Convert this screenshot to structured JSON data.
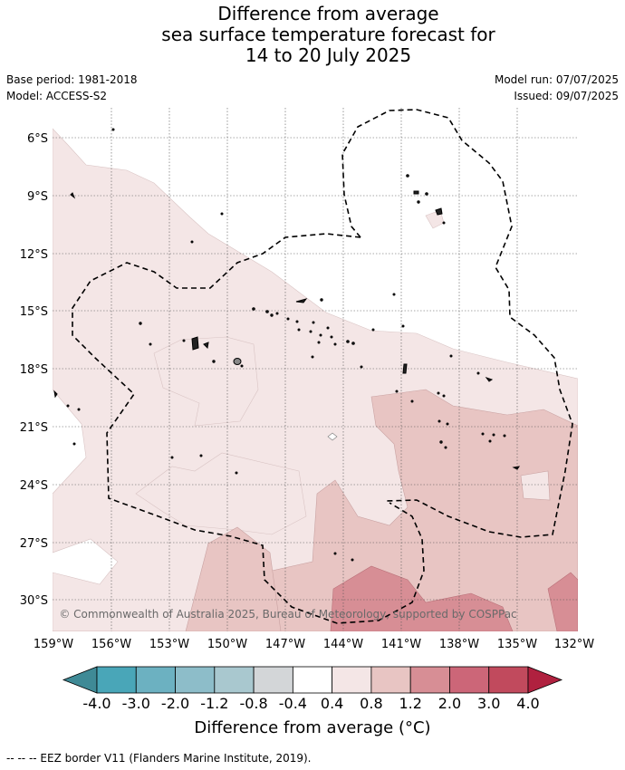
{
  "title": {
    "line1": "Difference from average",
    "line2": "sea surface temperature forecast for",
    "line3": "14 to 20 July 2025"
  },
  "meta_left": {
    "base_period": "Base period: 1981-2018",
    "model": "Model: ACCESS-S2"
  },
  "meta_right": {
    "model_run": "Model run: 07/07/2025",
    "issued": "Issued: 09/07/2025"
  },
  "map": {
    "lat_labels": [
      "6°S",
      "9°S",
      "12°S",
      "15°S",
      "18°S",
      "21°S",
      "24°S",
      "27°S",
      "30°S"
    ],
    "lon_labels": [
      "159°W",
      "156°W",
      "153°W",
      "150°W",
      "147°W",
      "144°W",
      "141°W",
      "138°W",
      "135°W",
      "132°W"
    ],
    "copyright": "© Commonwealth of Australia 2025, Bureau of Meteorology, supported by COSPPac",
    "eez_border": "dashed"
  },
  "colorbar": {
    "ticks": [
      "-4.0",
      "-3.0",
      "-2.0",
      "-1.2",
      "-0.8",
      "-0.4",
      "0.4",
      "0.8",
      "1.2",
      "2.0",
      "3.0",
      "4.0"
    ],
    "colors": [
      "#3f8a96",
      "#49a6b8",
      "#6cb1c1",
      "#8dbdc9",
      "#a9c8cf",
      "#d3d6d8",
      "#ffffff",
      "#f4e6e6",
      "#e8c5c3",
      "#d78e95",
      "#cc6678",
      "#c14a5d",
      "#b0213f"
    ],
    "label": "Difference from average (°C)"
  },
  "footer": "--  --  -- EEZ border V11 (Flanders Marine Institute, 2019)."
}
